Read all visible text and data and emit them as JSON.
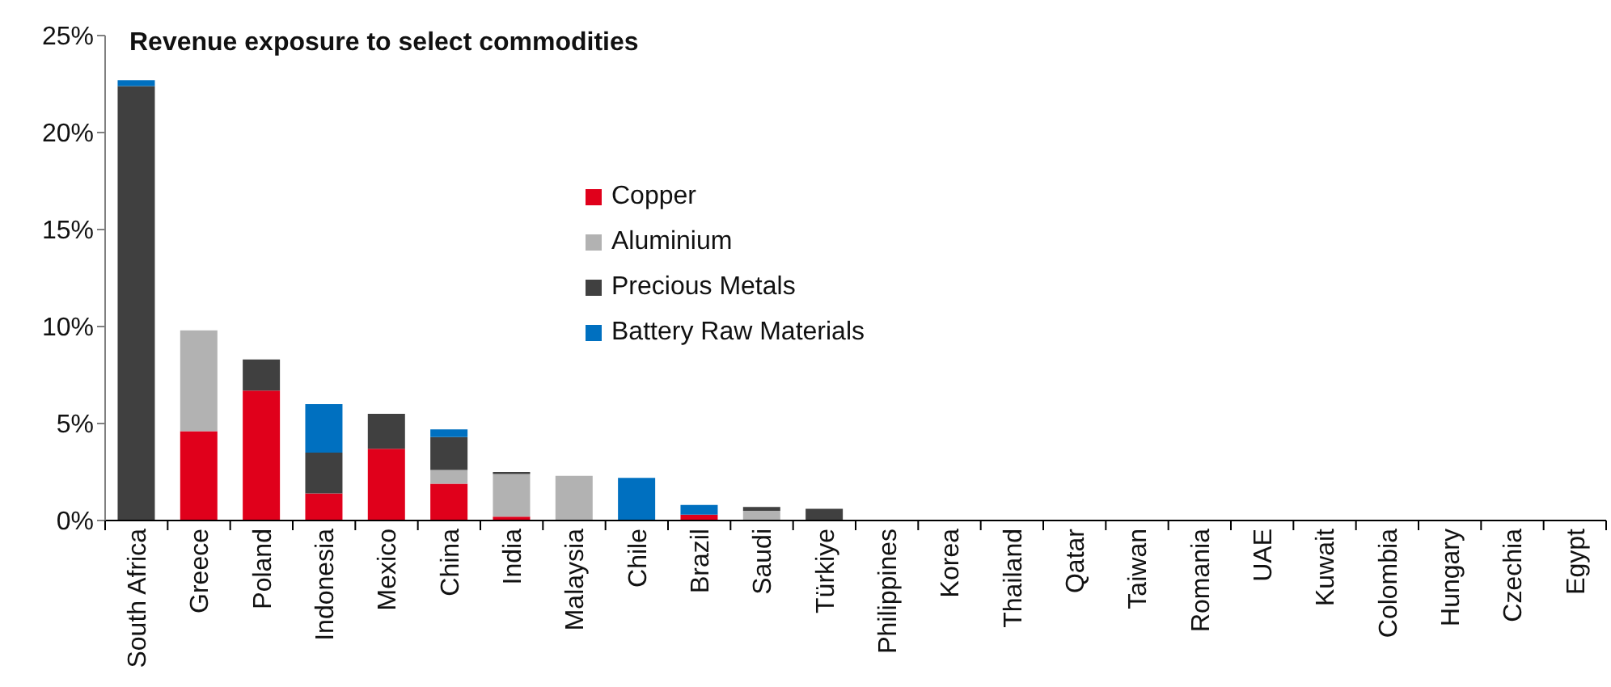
{
  "chart_data": {
    "type": "bar",
    "stacked": true,
    "title": "Revenue exposure to select commodities",
    "categories": [
      "South Africa",
      "Greece",
      "Poland",
      "Indonesia",
      "Mexico",
      "China",
      "India",
      "Malaysia",
      "Chile",
      "Brazil",
      "Saudi",
      "Türkiye",
      "Philippines",
      "Korea",
      "Thailand",
      "Qatar",
      "Taiwan",
      "Romania",
      "UAE",
      "Kuwait",
      "Colombia",
      "Hungary",
      "Czechia",
      "Egypt"
    ],
    "series": [
      {
        "name": "Copper",
        "color": "#e0001b",
        "values": [
          0,
          4.6,
          6.7,
          1.4,
          3.7,
          1.9,
          0.2,
          0,
          0,
          0.3,
          0,
          0,
          0,
          0,
          0,
          0,
          0,
          0,
          0,
          0,
          0,
          0,
          0,
          0
        ]
      },
      {
        "name": "Aluminium",
        "color": "#b2b2b2",
        "values": [
          0,
          5.2,
          0,
          0,
          0,
          0.7,
          2.2,
          2.3,
          0,
          0,
          0.5,
          0,
          0,
          0,
          0,
          0,
          0,
          0,
          0,
          0,
          0,
          0,
          0,
          0
        ]
      },
      {
        "name": "Precious Metals",
        "color": "#404040",
        "values": [
          22.4,
          0,
          1.6,
          2.1,
          1.8,
          1.7,
          0.1,
          0,
          0,
          0,
          0.2,
          0.6,
          0,
          0,
          0,
          0,
          0,
          0,
          0,
          0,
          0,
          0,
          0,
          0
        ]
      },
      {
        "name": "Battery Raw Materials",
        "color": "#0070c0",
        "values": [
          0.3,
          0,
          0,
          2.5,
          0,
          0.4,
          0,
          0,
          2.2,
          0.5,
          0,
          0,
          0,
          0,
          0,
          0,
          0,
          0,
          0,
          0,
          0,
          0,
          0,
          0
        ]
      }
    ],
    "ylim": [
      0,
      25
    ],
    "yticks": [
      {
        "value": 0,
        "label": "0%"
      },
      {
        "value": 5,
        "label": "5%"
      },
      {
        "value": 10,
        "label": "10%"
      },
      {
        "value": 15,
        "label": "15%"
      },
      {
        "value": 20,
        "label": "20%"
      },
      {
        "value": 25,
        "label": "25%"
      }
    ],
    "legend": "top"
  }
}
